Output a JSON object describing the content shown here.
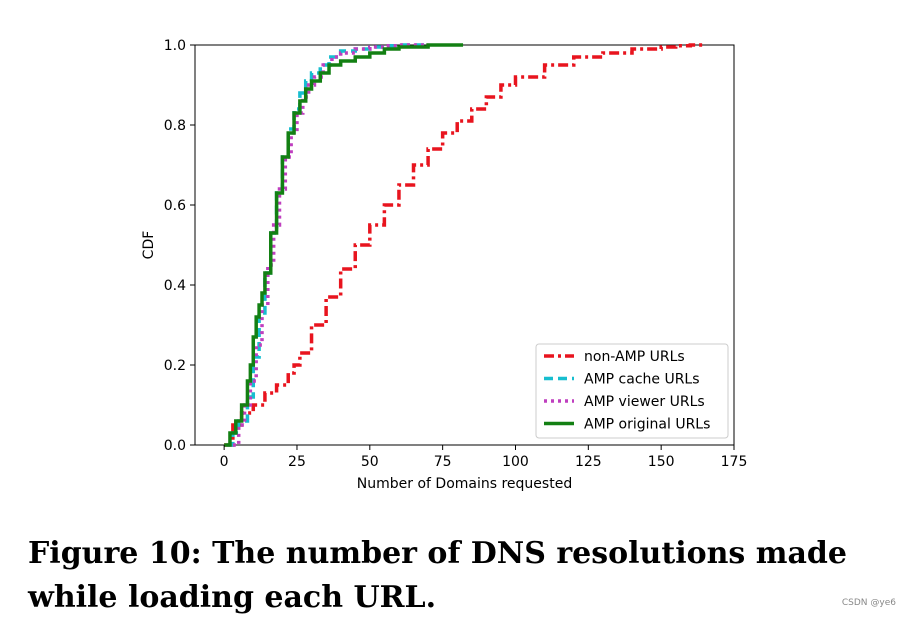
{
  "caption": "Figure 10: The number of DNS resolutions made while loading each URL.",
  "watermark": "CSDN @ye6",
  "chart_data": {
    "type": "line",
    "xlabel": "Number of Domains requested",
    "ylabel": "CDF",
    "xlim": [
      -10,
      175
    ],
    "ylim": [
      0,
      1.0
    ],
    "xticks": [
      0,
      25,
      50,
      75,
      100,
      125,
      150,
      175
    ],
    "yticks": [
      0.0,
      0.2,
      0.4,
      0.6,
      0.8,
      1.0
    ],
    "grid": false,
    "legend_position": "lower-right",
    "series": [
      {
        "name": "non-AMP URLs",
        "color": "#e8141e",
        "style": "dashdot",
        "x": [
          0,
          3,
          6,
          10,
          14,
          18,
          22,
          24,
          26,
          30,
          35,
          40,
          45,
          50,
          55,
          60,
          65,
          70,
          75,
          80,
          85,
          90,
          95,
          100,
          110,
          120,
          130,
          140,
          150,
          155,
          160,
          165
        ],
        "y": [
          0.0,
          0.05,
          0.08,
          0.1,
          0.13,
          0.15,
          0.18,
          0.2,
          0.23,
          0.3,
          0.37,
          0.44,
          0.5,
          0.55,
          0.6,
          0.65,
          0.7,
          0.74,
          0.78,
          0.81,
          0.84,
          0.87,
          0.9,
          0.92,
          0.95,
          0.97,
          0.98,
          0.99,
          0.995,
          0.998,
          1.0,
          1.0
        ]
      },
      {
        "name": "AMP cache URLs",
        "color": "#17becf",
        "style": "dashed",
        "x": [
          1,
          3,
          5,
          8,
          10,
          12,
          14,
          16,
          18,
          20,
          22,
          24,
          26,
          28,
          30,
          33,
          36,
          40,
          45,
          50,
          55,
          60,
          65,
          70
        ],
        "y": [
          0.0,
          0.03,
          0.06,
          0.12,
          0.22,
          0.33,
          0.43,
          0.53,
          0.63,
          0.72,
          0.79,
          0.84,
          0.88,
          0.91,
          0.93,
          0.95,
          0.97,
          0.985,
          0.99,
          0.995,
          0.998,
          1.0,
          1.0,
          1.0
        ]
      },
      {
        "name": "AMP viewer URLs",
        "color": "#bf3fbf",
        "style": "dotted",
        "x": [
          3,
          5,
          7,
          9,
          11,
          13,
          15,
          17,
          19,
          21,
          23,
          25,
          27,
          29,
          31,
          34,
          37,
          40,
          45,
          50,
          55,
          60,
          65,
          70
        ],
        "y": [
          0.0,
          0.05,
          0.1,
          0.16,
          0.25,
          0.35,
          0.45,
          0.55,
          0.64,
          0.72,
          0.78,
          0.83,
          0.87,
          0.9,
          0.92,
          0.95,
          0.97,
          0.98,
          0.99,
          0.995,
          0.998,
          1.0,
          1.0,
          1.0
        ]
      },
      {
        "name": "AMP original URLs",
        "color": "#138013",
        "style": "solid",
        "x": [
          0,
          2,
          4,
          6,
          8,
          9,
          10,
          11,
          12,
          13,
          14,
          16,
          18,
          20,
          22,
          24,
          26,
          28,
          30,
          33,
          36,
          40,
          45,
          50,
          55,
          60,
          70,
          82
        ],
        "y": [
          0.0,
          0.03,
          0.06,
          0.1,
          0.16,
          0.2,
          0.27,
          0.32,
          0.35,
          0.38,
          0.43,
          0.53,
          0.63,
          0.72,
          0.78,
          0.83,
          0.86,
          0.89,
          0.91,
          0.93,
          0.95,
          0.96,
          0.97,
          0.98,
          0.99,
          0.995,
          1.0,
          1.0
        ]
      }
    ]
  }
}
